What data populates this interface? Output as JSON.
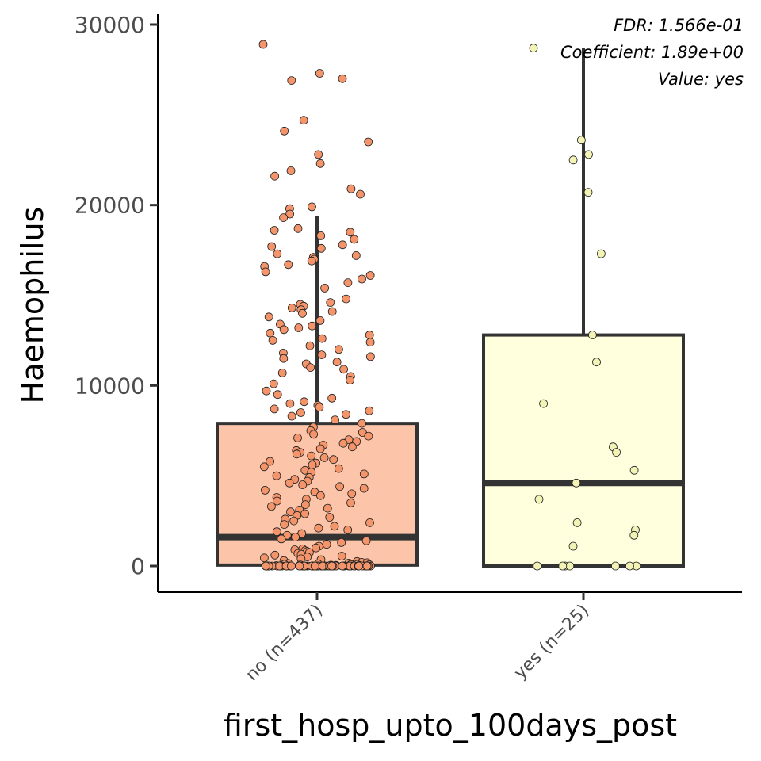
{
  "chart_data": {
    "type": "box",
    "xlabel": "first_hosp_upto_100days_post",
    "ylabel": "Haemophilus",
    "ylim": [
      -1400,
      30300
    ],
    "yticks": [
      0,
      10000,
      20000,
      30000
    ],
    "ytick_labels": [
      "0",
      "10000",
      "20000",
      "30000"
    ],
    "annotations": [
      "FDR: 1.566e-01",
      "Coefficient: 1.89e+00",
      "Value: yes"
    ],
    "groups": [
      {
        "category": "no (n=437)",
        "fill": "#fcc5aa",
        "point_fill": "#f4946a",
        "whisker_low": 0,
        "q1": 50,
        "median": 1600,
        "q3": 7900,
        "whisker_high": 19400,
        "points": [
          28900,
          27300,
          27000,
          26900,
          24700,
          24100,
          23500,
          22800,
          22300,
          21900,
          21600,
          20900,
          20600,
          19900,
          19800,
          19500,
          19300,
          18700,
          18600,
          18500,
          18300,
          18100,
          17800,
          17700,
          17600,
          17300,
          17200,
          17100,
          17000,
          16900,
          16700,
          16600,
          16300,
          16100,
          15900,
          15700,
          15400,
          14800,
          14600,
          14500,
          14400,
          14300,
          14200,
          14100,
          14000,
          13800,
          13600,
          13400,
          13300,
          13200,
          13100,
          12900,
          12800,
          12600,
          12500,
          12400,
          12200,
          12000,
          11800,
          11700,
          11600,
          11500,
          11300,
          11200,
          11000,
          10900,
          10700,
          10500,
          10300,
          10100,
          9700,
          9500,
          9300,
          9100,
          9000,
          8900,
          8800,
          8700,
          8600,
          8500,
          8400,
          8300,
          8100,
          7900,
          7700,
          7500,
          7400,
          7300,
          7200,
          7100,
          7000,
          6900,
          6800,
          6700,
          6600,
          6500,
          6400,
          6300,
          6200,
          6100,
          6000,
          5900,
          5800,
          5700,
          5600,
          5500,
          5400,
          5300,
          5200,
          5100,
          5000,
          4900,
          4800,
          4700,
          4600,
          4500,
          4400,
          4300,
          4200,
          4100,
          4000,
          3900,
          3800,
          3700,
          3600,
          3500,
          3400,
          3300,
          3200,
          3100,
          3000,
          2900,
          2800,
          2700,
          2600,
          2500,
          2400,
          2300,
          2200,
          2100,
          2000,
          1900,
          1800,
          1700,
          1600,
          1500,
          1400,
          1300,
          1200,
          1100,
          1000,
          950,
          900,
          850,
          800,
          750,
          700,
          650,
          600,
          550,
          500,
          450,
          400,
          350,
          300,
          250,
          200,
          180,
          160,
          140,
          120,
          100,
          90,
          80,
          70,
          60,
          50,
          40,
          30,
          20,
          10,
          0,
          0,
          0,
          0,
          0,
          0,
          0,
          0,
          0,
          0,
          0,
          0,
          0,
          0,
          0,
          0,
          0,
          0,
          0,
          0,
          0,
          0,
          0,
          0,
          0,
          0,
          0,
          0,
          0,
          0,
          0,
          0,
          0,
          0,
          0,
          0,
          0,
          0,
          0,
          0,
          0,
          0,
          0,
          0,
          0,
          0,
          0,
          0,
          0,
          0,
          0,
          0,
          0,
          0,
          0,
          0,
          0,
          0,
          0,
          0,
          0,
          0,
          0,
          0,
          0,
          0,
          0,
          0,
          0,
          0
        ]
      },
      {
        "category": "yes (n=25)",
        "fill": "#ffffde",
        "point_fill": "#f3f3b6",
        "whisker_low": 0,
        "q1": 0,
        "median": 4600,
        "q3": 12800,
        "whisker_high": 28700,
        "points": [
          28700,
          23600,
          22800,
          22500,
          20700,
          17300,
          12800,
          11300,
          9000,
          6600,
          6300,
          5300,
          4600,
          3700,
          2400,
          2000,
          1700,
          1100,
          0,
          0,
          0,
          0,
          0,
          0,
          0
        ]
      }
    ]
  }
}
